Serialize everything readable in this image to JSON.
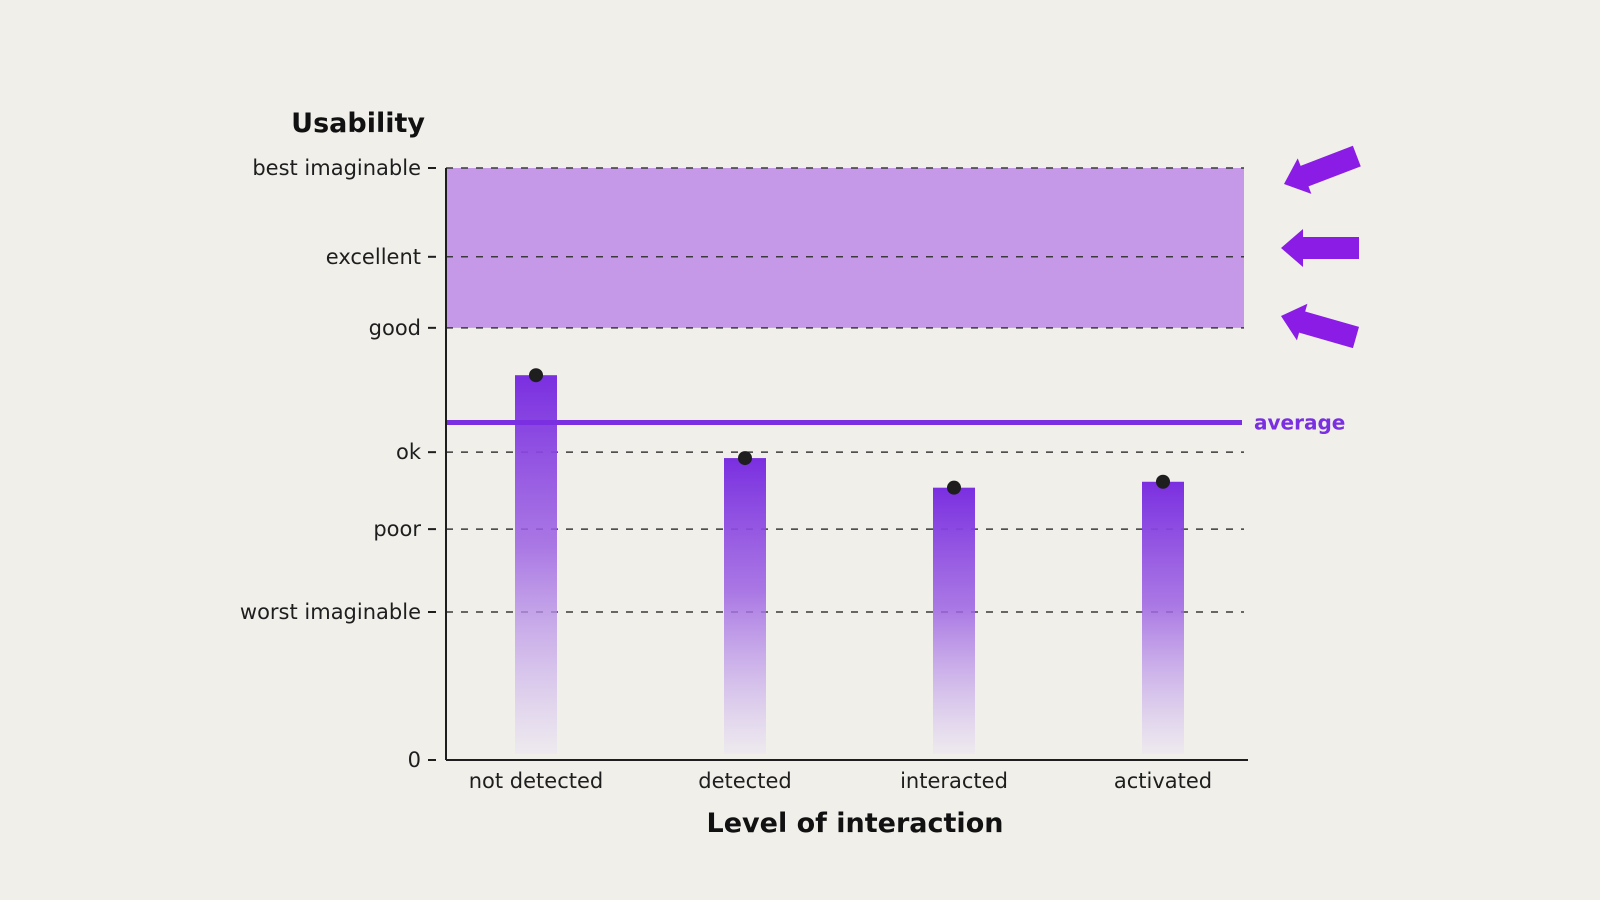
{
  "chart_data": {
    "type": "bar",
    "title": "",
    "ylabel": "Usability",
    "xlabel": "Level of interaction",
    "categories": [
      "not detected",
      "detected",
      "interacted",
      "activated"
    ],
    "values": [
      65,
      51,
      46,
      47
    ],
    "ylim": [
      0,
      100
    ],
    "y_ticks": [
      {
        "label": "0",
        "value": 0
      },
      {
        "label": "worst imaginable",
        "value": 25
      },
      {
        "label": "poor",
        "value": 39
      },
      {
        "label": "ok",
        "value": 52
      },
      {
        "label": "good",
        "value": 73
      },
      {
        "label": "excellent",
        "value": 85
      },
      {
        "label": "best imaginable",
        "value": 100
      }
    ],
    "target_band": {
      "from": 73,
      "to": 100
    },
    "average": {
      "label": "average",
      "value": 57
    },
    "grid": true,
    "colors": {
      "bar_top": "#7a2fe0",
      "band": "#c599e8",
      "average_line": "#7a2fe0",
      "arrows": "#8a1ce6",
      "dots": "#1e1e1e",
      "background": "#f0efea"
    }
  }
}
